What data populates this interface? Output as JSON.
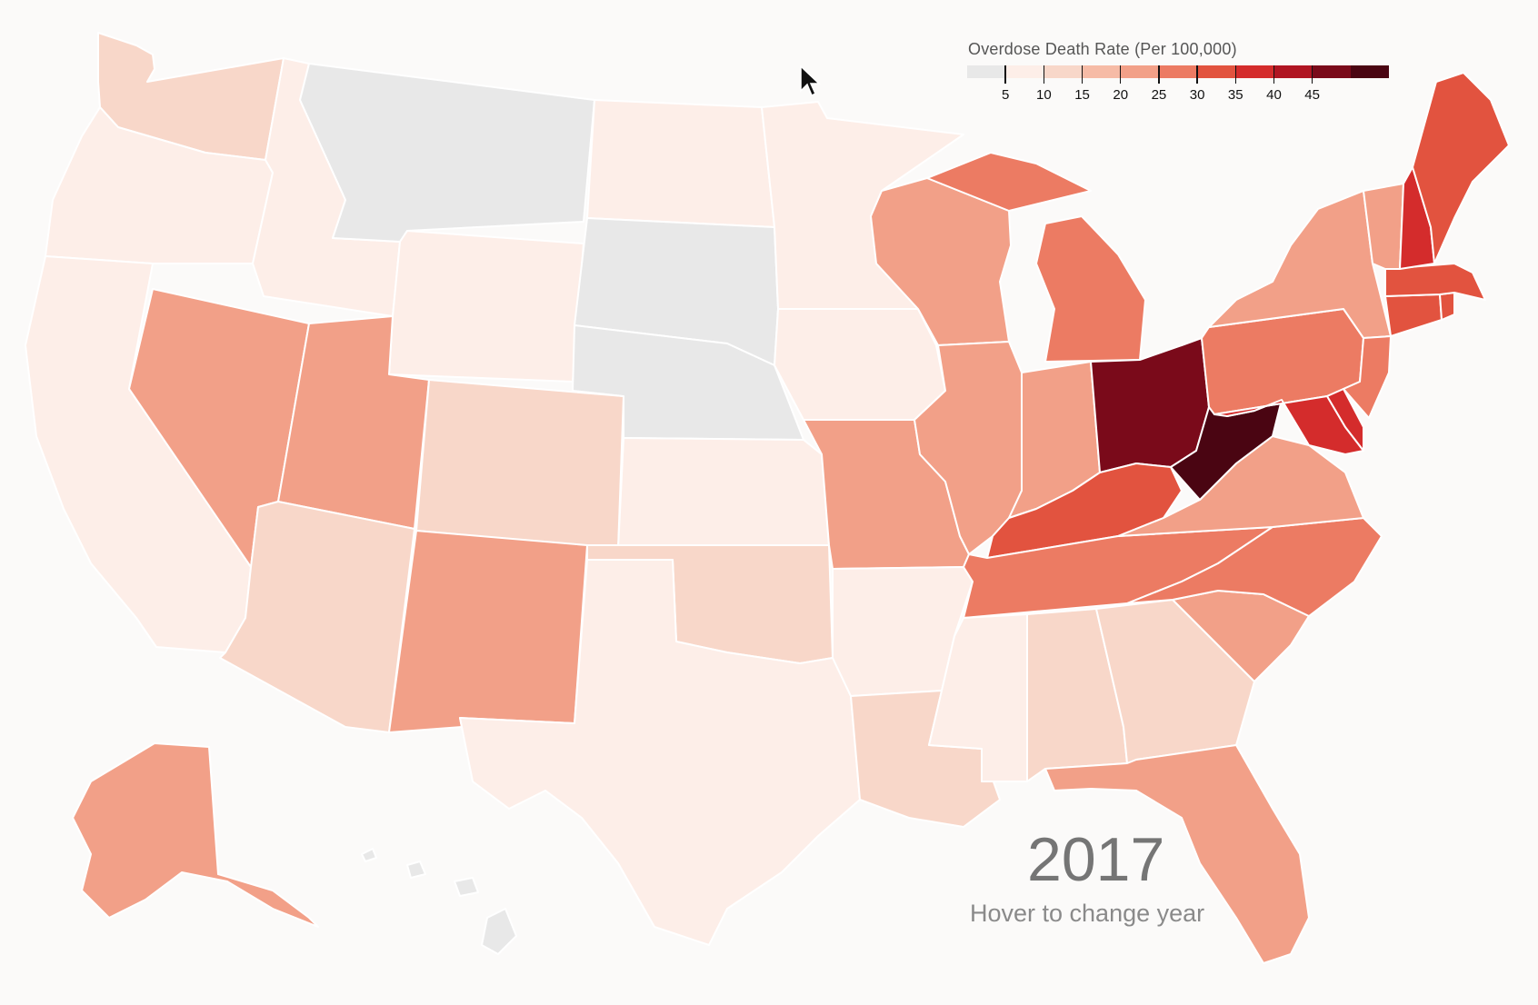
{
  "legend": {
    "title": "Overdose Death Rate (Per 100,000)",
    "ticks": [
      "5",
      "10",
      "15",
      "20",
      "25",
      "30",
      "35",
      "40",
      "45"
    ],
    "colors": [
      "#e8e8e8",
      "#fdeee8",
      "#f8d7c9",
      "#f6bba6",
      "#f2a088",
      "#ec7b63",
      "#e2533f",
      "#d42c2c",
      "#b01522",
      "#7a0a1a",
      "#4a0512"
    ]
  },
  "year": "2017",
  "hover_hint": "Hover to change year",
  "colors": {
    "background": "#fbfaf9",
    "state_border": "#ffffff",
    "no_data": "#e8e8e8"
  },
  "states": {
    "WA": "#f8d7c9",
    "OR": "#fdeee8",
    "CA": "#fdeee8",
    "NV": "#f2a088",
    "ID": "#fdeee8",
    "MT": "#e8e8e8",
    "WY": "#fdeee8",
    "UT": "#f2a088",
    "AZ": "#f8d7c9",
    "CO": "#f8d7c9",
    "NM": "#f2a088",
    "ND": "#fdeee8",
    "SD": "#e8e8e8",
    "NE": "#e8e8e8",
    "KS": "#fdeee8",
    "OK": "#f8d7c9",
    "TX": "#fdeee8",
    "MN": "#fdeee8",
    "IA": "#fdeee8",
    "MO": "#f2a088",
    "AR": "#fdeee8",
    "LA": "#f8d7c9",
    "WI": "#f2a088",
    "IL": "#f2a088",
    "MI": "#ec7b63",
    "IN": "#f2a088",
    "OH": "#7a0a1a",
    "KY": "#e2533f",
    "TN": "#ec7b63",
    "MS": "#fdeee8",
    "AL": "#f8d7c9",
    "GA": "#f8d7c9",
    "FL": "#f2a088",
    "SC": "#f2a088",
    "NC": "#ec7b63",
    "VA": "#f2a088",
    "WV": "#4a0512",
    "PA": "#ec7b63",
    "NY": "#f2a088",
    "VT": "#f2a088",
    "NH": "#d42c2c",
    "ME": "#e2533f",
    "MA": "#e2533f",
    "RI": "#e2533f",
    "CT": "#e2533f",
    "NJ": "#ec7b63",
    "DE": "#d42c2c",
    "MD": "#d42c2c",
    "AK": "#f2a088",
    "HI": "#e8e8e8"
  }
}
